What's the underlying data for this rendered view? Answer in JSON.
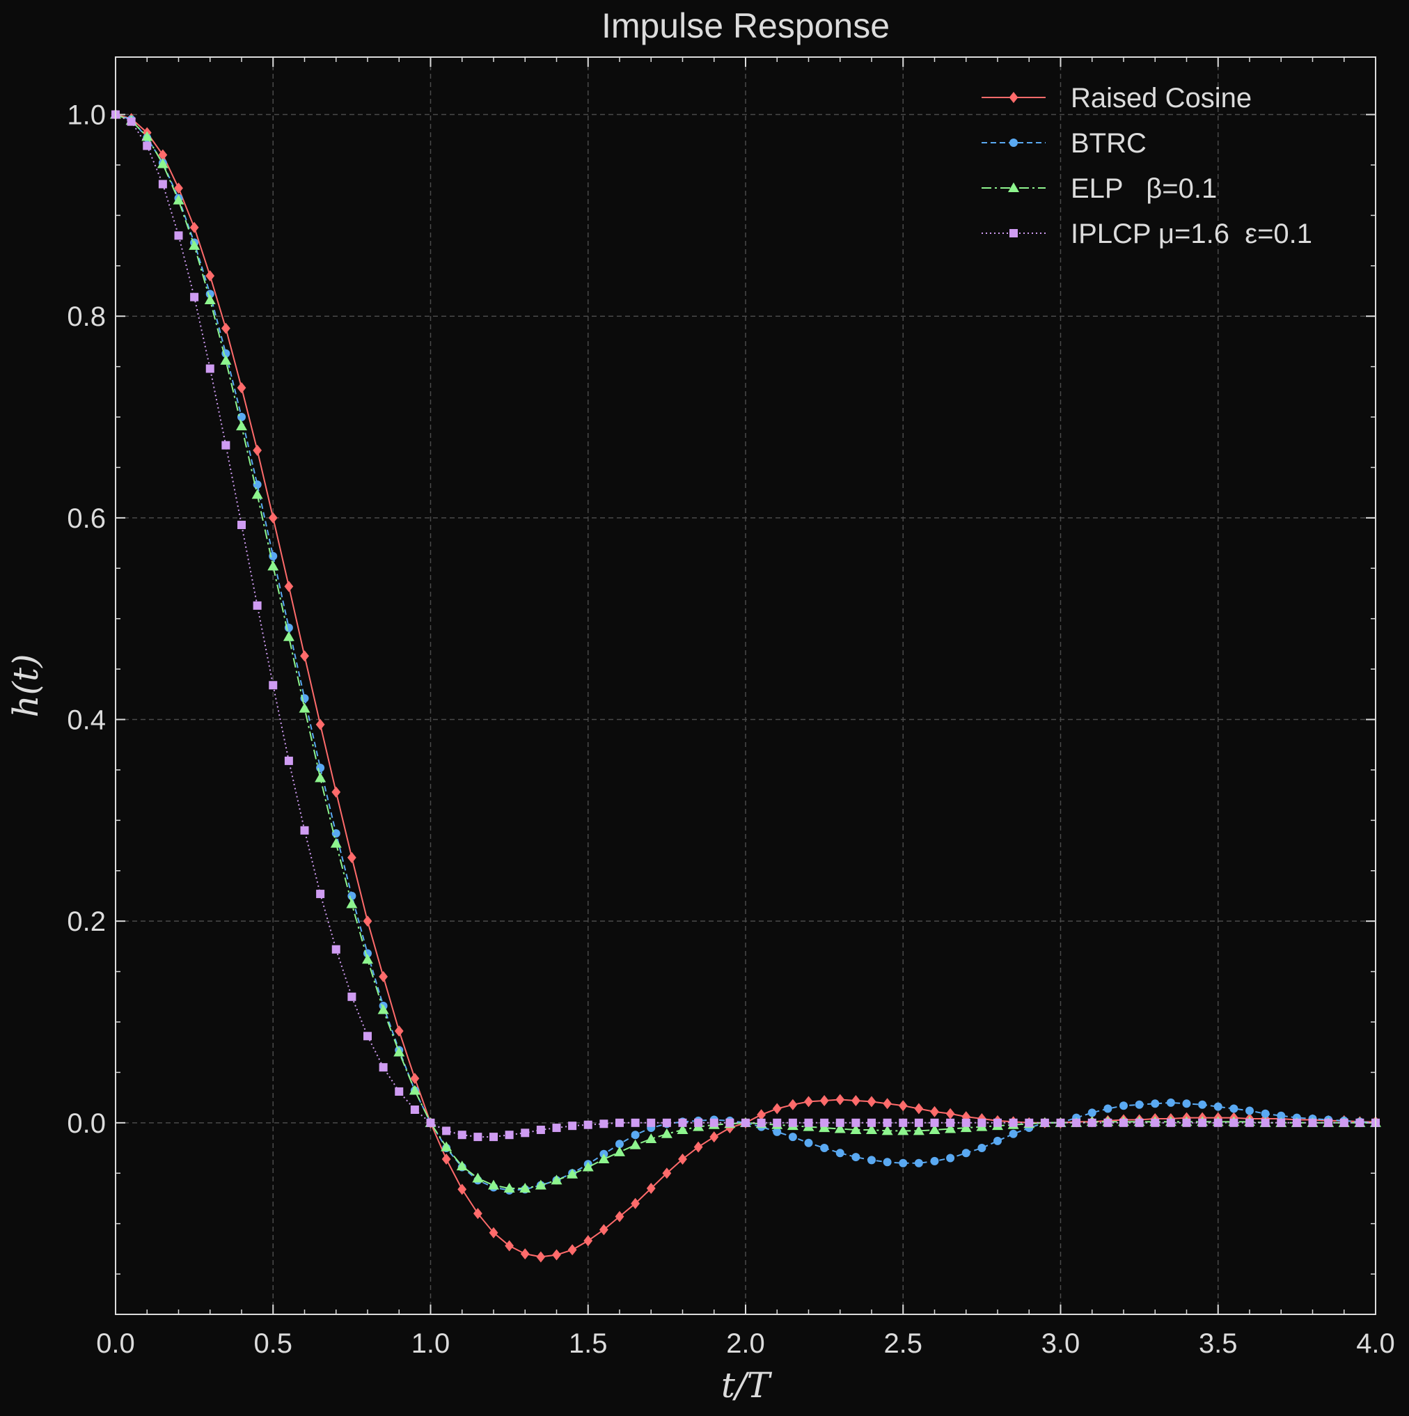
{
  "chart_data": {
    "type": "line",
    "title": "Impulse Response",
    "xlabel": "t/T",
    "ylabel": "h(t)",
    "xlim": [
      0,
      4
    ],
    "ylim": [
      -0.19,
      1.057
    ],
    "xticks": [
      "0.0",
      "0.5",
      "1.0",
      "1.5",
      "2.0",
      "2.5",
      "3.0",
      "3.5",
      "4.0"
    ],
    "yticks": [
      "0.0",
      "0.2",
      "0.4",
      "0.6",
      "0.8",
      "1.0"
    ],
    "grid": true,
    "legend_position": "top-right",
    "x": [
      0.0,
      0.05,
      0.1,
      0.15,
      0.2,
      0.25,
      0.3,
      0.35,
      0.4,
      0.45,
      0.5,
      0.55,
      0.6,
      0.65,
      0.7,
      0.75,
      0.8,
      0.85,
      0.9,
      0.95,
      1.0,
      1.05,
      1.1,
      1.15,
      1.2,
      1.25,
      1.3,
      1.35,
      1.4,
      1.45,
      1.5,
      1.55,
      1.6,
      1.65,
      1.7,
      1.75,
      1.8,
      1.85,
      1.9,
      1.95,
      2.0,
      2.05,
      2.1,
      2.15,
      2.2,
      2.25,
      2.3,
      2.35,
      2.4,
      2.45,
      2.5,
      2.55,
      2.6,
      2.65,
      2.7,
      2.75,
      2.8,
      2.85,
      2.9,
      2.95,
      3.0,
      3.05,
      3.1,
      3.15,
      3.2,
      3.25,
      3.3,
      3.35,
      3.4,
      3.45,
      3.5,
      3.55,
      3.6,
      3.65,
      3.7,
      3.75,
      3.8,
      3.85,
      3.9,
      3.95,
      4.0
    ],
    "series": [
      {
        "name": "Raised Cosine",
        "color": "#ff6b6b",
        "line_style": "solid",
        "marker": "diamond",
        "values": [
          1.0,
          0.996,
          0.982,
          0.96,
          0.927,
          0.888,
          0.84,
          0.788,
          0.729,
          0.667,
          0.6,
          0.532,
          0.463,
          0.395,
          0.328,
          0.263,
          0.2,
          0.145,
          0.091,
          0.044,
          0.0,
          -0.036,
          -0.066,
          -0.09,
          -0.109,
          -0.122,
          -0.13,
          -0.133,
          -0.131,
          -0.126,
          -0.117,
          -0.106,
          -0.093,
          -0.08,
          -0.065,
          -0.05,
          -0.036,
          -0.024,
          -0.014,
          -0.005,
          0.0,
          0.008,
          0.014,
          0.018,
          0.021,
          0.022,
          0.023,
          0.022,
          0.021,
          0.019,
          0.017,
          0.014,
          0.011,
          0.009,
          0.006,
          0.004,
          0.002,
          0.001,
          0.0,
          0.0,
          0.0,
          0.001,
          0.001,
          0.002,
          0.003,
          0.003,
          0.004,
          0.004,
          0.005,
          0.005,
          0.005,
          0.005,
          0.004,
          0.004,
          0.004,
          0.003,
          0.003,
          0.002,
          0.002,
          0.001,
          0.001
        ]
      },
      {
        "name": "BTRC",
        "color": "#5aa9f2",
        "line_style": "dashed",
        "marker": "circle",
        "values": [
          1.0,
          0.995,
          0.977,
          0.952,
          0.917,
          0.873,
          0.822,
          0.763,
          0.7,
          0.633,
          0.562,
          0.491,
          0.421,
          0.352,
          0.287,
          0.225,
          0.168,
          0.116,
          0.072,
          0.032,
          0.0,
          -0.025,
          -0.044,
          -0.057,
          -0.064,
          -0.067,
          -0.066,
          -0.062,
          -0.057,
          -0.05,
          -0.041,
          -0.031,
          -0.021,
          -0.012,
          -0.005,
          -0.001,
          0.001,
          0.002,
          0.003,
          0.002,
          0.0,
          -0.004,
          -0.009,
          -0.014,
          -0.02,
          -0.025,
          -0.03,
          -0.034,
          -0.037,
          -0.039,
          -0.04,
          -0.04,
          -0.038,
          -0.035,
          -0.03,
          -0.025,
          -0.018,
          -0.011,
          -0.005,
          0.0,
          0.0,
          0.005,
          0.01,
          0.014,
          0.017,
          0.018,
          0.019,
          0.02,
          0.019,
          0.018,
          0.016,
          0.014,
          0.012,
          0.009,
          0.007,
          0.005,
          0.004,
          0.003,
          0.002,
          0.001,
          0.0
        ]
      },
      {
        "name": "ELP   β=0.1",
        "color": "#8ef58e",
        "line_style": "dashdot",
        "marker": "triangle",
        "values": [
          1.0,
          0.994,
          0.978,
          0.951,
          0.915,
          0.87,
          0.816,
          0.756,
          0.691,
          0.623,
          0.552,
          0.482,
          0.411,
          0.342,
          0.277,
          0.217,
          0.162,
          0.112,
          0.07,
          0.032,
          0.0,
          -0.024,
          -0.043,
          -0.055,
          -0.062,
          -0.065,
          -0.065,
          -0.062,
          -0.057,
          -0.051,
          -0.044,
          -0.036,
          -0.029,
          -0.022,
          -0.016,
          -0.011,
          -0.007,
          -0.004,
          -0.002,
          -0.001,
          0.0,
          -0.001,
          -0.002,
          -0.003,
          -0.004,
          -0.005,
          -0.006,
          -0.007,
          -0.007,
          -0.008,
          -0.008,
          -0.008,
          -0.007,
          -0.006,
          -0.005,
          -0.004,
          -0.003,
          -0.002,
          -0.001,
          0.0,
          0.0,
          0.0,
          0.001,
          0.001,
          0.001,
          0.001,
          0.001,
          0.001,
          0.001,
          0.001,
          0.001,
          0.001,
          0.001,
          0.0,
          0.0,
          0.0,
          0.0,
          0.0,
          0.0,
          0.0,
          0.0
        ]
      },
      {
        "name": "IPLCP μ=1.6  ε=0.1",
        "color": "#cf9cf2",
        "line_style": "dotted",
        "marker": "square",
        "values": [
          1.0,
          0.993,
          0.969,
          0.931,
          0.88,
          0.819,
          0.748,
          0.672,
          0.593,
          0.513,
          0.434,
          0.359,
          0.29,
          0.227,
          0.172,
          0.125,
          0.086,
          0.055,
          0.031,
          0.013,
          0.0,
          -0.008,
          -0.012,
          -0.014,
          -0.014,
          -0.012,
          -0.01,
          -0.007,
          -0.005,
          -0.003,
          -0.002,
          -0.001,
          0.0,
          0.0,
          0.0,
          0.0,
          0.0,
          0.0,
          0.0,
          0.0,
          0.0,
          0.0,
          0.0,
          0.0,
          0.0,
          0.0,
          0.0,
          0.0,
          0.0,
          0.0,
          0.0,
          0.0,
          0.0,
          0.0,
          0.0,
          0.0,
          0.0,
          0.0,
          0.0,
          0.0,
          0.0,
          0.0,
          0.0,
          0.0,
          0.0,
          0.0,
          0.0,
          0.0,
          0.0,
          0.0,
          0.0,
          0.0,
          0.0,
          0.0,
          0.0,
          0.0,
          0.0,
          0.0,
          0.0,
          0.0,
          0.0
        ]
      }
    ]
  },
  "colors": {
    "background": "#0b0b0b",
    "axes": "#dcdcdc",
    "grid": "#4a4a4a"
  }
}
